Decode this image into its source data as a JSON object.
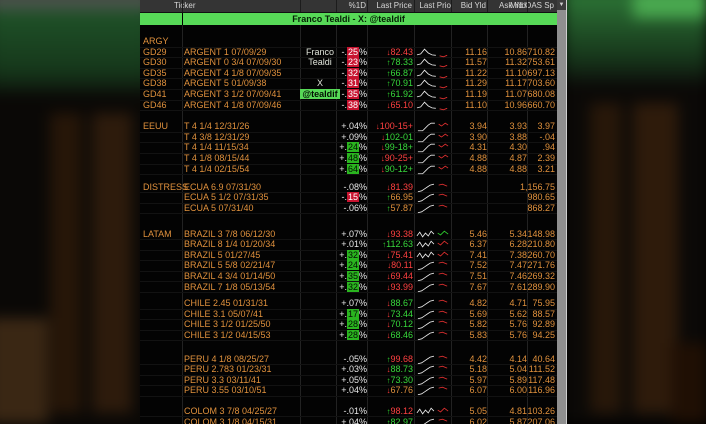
{
  "window": {
    "header": {
      "columns": [
        "Ticker",
        "%1D",
        "Last Price",
        "Last Prio",
        "Bid Yld",
        "Ask Yld",
        "Mid OAS Sp"
      ],
      "sort_icon": "down-triangle"
    },
    "banner": {
      "text": "Franco Tealdi - X: @tealdif"
    },
    "sections": [
      {
        "label": "ARGY",
        "label_own_row": true,
        "rows": [
          {
            "ticker": "GD29",
            "name": "ARGENT 1 07/09/29",
            "overlay": "Franco",
            "overlay_chip": false,
            "pct": "-.25%",
            "pct_hl": "red",
            "arrow": "down",
            "price": "82.43",
            "price_color": "red",
            "spark": {
              "shape": "hump",
              "tail": "red"
            },
            "bid": "11.16",
            "ask": "10.86",
            "oas": "710.82"
          },
          {
            "ticker": "GD30",
            "name": "ARGENT 0 3/4 07/09/30",
            "overlay": "Tealdi",
            "overlay_chip": false,
            "pct": "-.23%",
            "pct_hl": "red",
            "arrow": "up",
            "price": "78.33",
            "price_color": "green",
            "spark": {
              "shape": "hump",
              "tail": "red"
            },
            "bid": "11.57",
            "ask": "11.32",
            "oas": "753.61"
          },
          {
            "ticker": "GD35",
            "name": "ARGENT 4 1/8 07/09/35",
            "pct": "-.32%",
            "pct_hl": "red",
            "arrow": "up",
            "price": "66.87",
            "price_color": "green",
            "spark": {
              "shape": "hump",
              "tail": "red"
            },
            "bid": "11.22",
            "ask": "11.10",
            "oas": "697.13"
          },
          {
            "ticker": "GD38",
            "name": "ARGENT 5 01/09/38",
            "overlay": "X",
            "overlay_chip": false,
            "pct": "-.31%",
            "pct_hl": "red",
            "arrow": "up",
            "price": "70.91",
            "price_color": "green",
            "spark": {
              "shape": "hump",
              "tail": "red"
            },
            "bid": "11.29",
            "ask": "11.17",
            "oas": "703.60"
          },
          {
            "ticker": "GD41",
            "name": "ARGENT 3 1/2 07/09/41",
            "overlay": "@tealdif",
            "overlay_chip": true,
            "pct": "-.35%",
            "pct_hl": "red",
            "arrow": "up",
            "price": "61.92",
            "price_color": "green",
            "spark": {
              "shape": "hump",
              "tail": "red"
            },
            "bid": "11.19",
            "ask": "11.07",
            "oas": "680.08"
          },
          {
            "ticker": "GD46",
            "name": "ARGENT 4 1/8 07/09/46",
            "pct": "-.38%",
            "pct_hl": "red",
            "arrow": "down",
            "price": "65.10",
            "price_color": "red",
            "spark": {
              "shape": "hump",
              "tail": "red"
            },
            "bid": "11.10",
            "ask": "10.96",
            "oas": "660.70"
          }
        ]
      },
      {
        "label": "EEUU",
        "label_own_row": false,
        "rows": [
          {
            "name": "T 4 1/4 12/31/26",
            "pct": "+.04%",
            "pct_hl": null,
            "arrow": "down",
            "price": "100-15+",
            "price_color": "red",
            "spark": {
              "shape": "step",
              "tail": "red"
            },
            "bid": "3.94",
            "ask": "3.93",
            "oas": "3.97"
          },
          {
            "name": "T 4 3/8 12/31/29",
            "pct": "+.09%",
            "pct_hl": null,
            "arrow": "down",
            "price": "102-01",
            "price_color": "green",
            "spark": {
              "shape": "step",
              "tail": "red"
            },
            "bid": "3.90",
            "ask": "3.88",
            "oas": "-.04"
          },
          {
            "name": "T 4 1/4 11/15/34",
            "pct": "+.24%",
            "pct_hl": "green",
            "arrow": "down",
            "price": "99-18+",
            "price_color": "green",
            "spark": {
              "shape": "step",
              "tail": "red"
            },
            "bid": "4.31",
            "ask": "4.30",
            "oas": ".94"
          },
          {
            "name": "T 4 1/8 08/15/44",
            "pct": "+.48%",
            "pct_hl": "green",
            "arrow": "down",
            "price": "90-25+",
            "price_color": "red",
            "spark": {
              "shape": "step",
              "tail": "red"
            },
            "bid": "4.88",
            "ask": "4.87",
            "oas": "2.39"
          },
          {
            "name": "T 4 1/4 02/15/54",
            "pct": "+.64%",
            "pct_hl": "green",
            "arrow": "down",
            "price": "90-12+",
            "price_color": "green",
            "spark": {
              "shape": "step",
              "tail": "red"
            },
            "bid": "4.88",
            "ask": "4.88",
            "oas": "3.21"
          }
        ]
      },
      {
        "label": "DISTRESS",
        "label_own_row": false,
        "rows": [
          {
            "name": "ECUA 6.9 07/31/30",
            "pct": "-.08%",
            "pct_hl": null,
            "arrow": "down",
            "price": "81.39",
            "price_color": "red",
            "spark": {
              "shape": "rise",
              "tail": "red"
            },
            "bid": "",
            "ask": "",
            "oas": "1,156.75"
          },
          {
            "name": "ECUA 5 1/2 07/31/35",
            "pct": "-.15%",
            "pct_hl": "red",
            "arrow": "up",
            "price": "66.95",
            "price_color": "amber",
            "spark": {
              "shape": "rise",
              "tail": "red"
            },
            "bid": "",
            "ask": "",
            "oas": "980.65"
          },
          {
            "name": "ECUA 5 07/31/40",
            "pct": "-.06%",
            "pct_hl": null,
            "arrow": "up",
            "price": "57.87",
            "price_color": "amber",
            "spark": {
              "shape": "rise",
              "tail": "red"
            },
            "bid": "",
            "ask": "",
            "oas": "868.27"
          }
        ]
      },
      {
        "label": "LATAM",
        "label_own_row": false,
        "rows": [
          {
            "name": "BRAZIL 3 7/8 06/12/30",
            "pct": "+.07%",
            "pct_hl": null,
            "arrow": "down",
            "price": "93.38",
            "price_color": "red",
            "spark": {
              "shape": "jag",
              "tail": "green"
            },
            "bid": "5.46",
            "ask": "5.34",
            "oas": "148.98"
          },
          {
            "name": "BRAZIL 8 1/4 01/20/34",
            "pct": "+.01%",
            "pct_hl": null,
            "arrow": "up",
            "price": "112.63",
            "price_color": "green",
            "spark": {
              "shape": "jag",
              "tail": "red"
            },
            "bid": "6.37",
            "ask": "6.28",
            "oas": "210.80"
          },
          {
            "name": "BRAZIL 5 01/27/45",
            "pct": "+.32%",
            "pct_hl": "green",
            "arrow": "down",
            "price": "75.41",
            "price_color": "red",
            "spark": {
              "shape": "jag",
              "tail": "red"
            },
            "bid": "7.41",
            "ask": "7.38",
            "oas": "260.70"
          },
          {
            "name": "BRAZIL 5 5/8 02/21/47",
            "pct": "+.24%",
            "pct_hl": "green",
            "arrow": "down",
            "price": "80.11",
            "price_color": "red",
            "spark": {
              "shape": "rise",
              "tail": "red"
            },
            "bid": "7.52",
            "ask": "7.47",
            "oas": "271.76"
          },
          {
            "name": "BRAZIL 4 3/4 01/14/50",
            "pct": "+.35%",
            "pct_hl": "green",
            "arrow": "down",
            "price": "69.44",
            "price_color": "red",
            "spark": {
              "shape": "rise",
              "tail": "red"
            },
            "bid": "7.51",
            "ask": "7.46",
            "oas": "269.32"
          },
          {
            "name": "BRAZIL 7 1/8 05/13/54",
            "pct": "+.32%",
            "pct_hl": "green",
            "arrow": "down",
            "price": "93.99",
            "price_color": "red",
            "spark": {
              "shape": "rise",
              "tail": "red"
            },
            "bid": "7.67",
            "ask": "7.61",
            "oas": "289.90"
          }
        ]
      },
      {
        "label": "",
        "label_own_row": false,
        "rows": [
          {
            "name": "CHILE 2.45 01/31/31",
            "pct": "+.07%",
            "pct_hl": null,
            "arrow": "down",
            "price": "88.67",
            "price_color": "green",
            "spark": {
              "shape": "rise",
              "tail": "red"
            },
            "bid": "4.82",
            "ask": "4.71",
            "oas": "75.95"
          },
          {
            "name": "CHILE 3.1 05/07/41",
            "pct": "+.17%",
            "pct_hl": "green",
            "arrow": "down",
            "price": "73.44",
            "price_color": "green",
            "spark": {
              "shape": "rise",
              "tail": "red"
            },
            "bid": "5.69",
            "ask": "5.62",
            "oas": "88.57"
          },
          {
            "name": "CHILE 3 1/2 01/25/50",
            "pct": "+.28%",
            "pct_hl": "green",
            "arrow": "down",
            "price": "70.12",
            "price_color": "green",
            "spark": {
              "shape": "rise",
              "tail": "red"
            },
            "bid": "5.82",
            "ask": "5.76",
            "oas": "92.89"
          },
          {
            "name": "CHILE 3 1/2 04/15/53",
            "pct": "+.28%",
            "pct_hl": "green",
            "arrow": "down",
            "price": "68.46",
            "price_color": "green",
            "spark": {
              "shape": "rise",
              "tail": "red"
            },
            "bid": "5.83",
            "ask": "5.76",
            "oas": "94.25"
          }
        ]
      },
      {
        "label": "",
        "label_own_row": false,
        "rows": [
          {
            "name": "PERU 4 1/8 08/25/27",
            "pct": "-.05%",
            "pct_hl": null,
            "arrow": "up",
            "price": "99.68",
            "price_color": "red",
            "spark": {
              "shape": "rise",
              "tail": "red"
            },
            "bid": "4.42",
            "ask": "4.14",
            "oas": "40.64"
          },
          {
            "name": "PERU 2.783 01/23/31",
            "pct": "+.03%",
            "pct_hl": null,
            "arrow": "down",
            "price": "88.73",
            "price_color": "green",
            "spark": {
              "shape": "rise",
              "tail": "red"
            },
            "bid": "5.18",
            "ask": "5.04",
            "oas": "111.52"
          },
          {
            "name": "PERU 3.3 03/11/41",
            "pct": "+.05%",
            "pct_hl": null,
            "arrow": "up",
            "price": "73.30",
            "price_color": "green",
            "spark": {
              "shape": "rise",
              "tail": "red"
            },
            "bid": "5.97",
            "ask": "5.89",
            "oas": "117.48"
          },
          {
            "name": "PERU 3.55 03/10/51",
            "pct": "+.04%",
            "pct_hl": null,
            "arrow": "down",
            "price": "67.76",
            "price_color": "amber",
            "spark": {
              "shape": "rise",
              "tail": "red"
            },
            "bid": "6.07",
            "ask": "6.00",
            "oas": "116.96"
          }
        ]
      },
      {
        "label": "",
        "label_own_row": false,
        "rows": [
          {
            "name": "COLOM 3 7/8 04/25/27",
            "pct": "-.01%",
            "pct_hl": null,
            "arrow": "up",
            "price": "98.12",
            "price_color": "red",
            "spark": {
              "shape": "jag",
              "tail": "red"
            },
            "bid": "5.05",
            "ask": "4.81",
            "oas": "103.26"
          },
          {
            "name": "COLOM 3 1/8 04/15/31",
            "pct": "+.04%",
            "pct_hl": null,
            "arrow": "up",
            "price": "82.97",
            "price_color": "green",
            "spark": {
              "shape": "rise",
              "tail": "red"
            },
            "bid": "6.02",
            "ask": "5.87",
            "oas": "207.06"
          }
        ]
      }
    ]
  },
  "colors": {
    "amber_text": "#e0913d",
    "banner_green": "#57d957",
    "chip_red_bg": "#c81430",
    "chip_green_bg": "#2ab51f",
    "price_up": "#38d93c",
    "price_down": "#ff4141",
    "header_bg": "#343434",
    "scrollbar": "#8f8f8f"
  }
}
